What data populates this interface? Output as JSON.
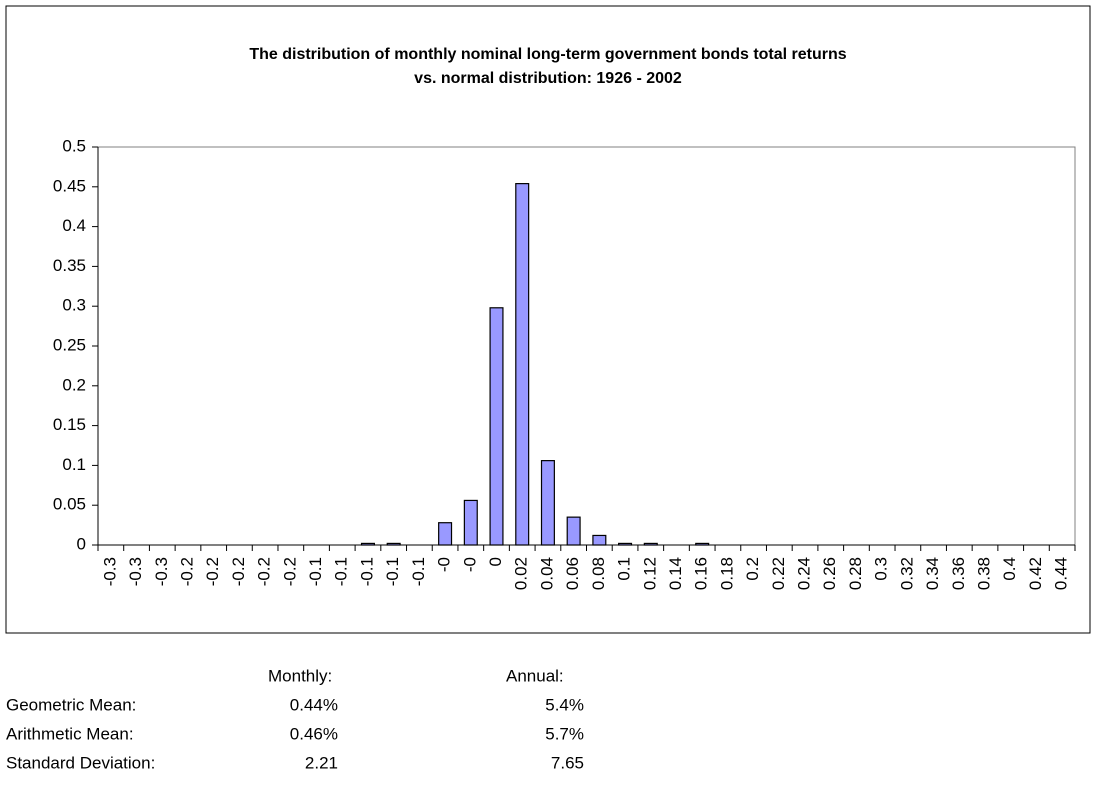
{
  "chart_data": {
    "type": "bar",
    "title": [
      "The distribution of monthly nominal long-term government bonds total returns",
      "vs. normal distribution: 1926 - 2002"
    ],
    "categories": [
      "-0.3",
      "-0.3",
      "-0.3",
      "-0.2",
      "-0.2",
      "-0.2",
      "-0.2",
      "-0.2",
      "-0.1",
      "-0.1",
      "-0.1",
      "-0.1",
      "-0.1",
      "-0",
      "-0",
      "0",
      "0.02",
      "0.04",
      "0.06",
      "0.08",
      "0.1",
      "0.12",
      "0.14",
      "0.16",
      "0.18",
      "0.2",
      "0.22",
      "0.24",
      "0.26",
      "0.28",
      "0.3",
      "0.32",
      "0.34",
      "0.36",
      "0.38",
      "0.4",
      "0.42",
      "0.44"
    ],
    "values": [
      0,
      0,
      0,
      0,
      0,
      0,
      0,
      0,
      0,
      0,
      0.002,
      0.002,
      0,
      0.028,
      0.056,
      0.298,
      0.454,
      0.106,
      0.035,
      0.012,
      0.002,
      0.002,
      0,
      0.002,
      0,
      0,
      0,
      0,
      0,
      0,
      0,
      0,
      0,
      0,
      0,
      0,
      0,
      0
    ],
    "color": "#9999ff",
    "ylim": [
      0,
      0.5
    ],
    "yticks": [
      0,
      0.05,
      0.1,
      0.15,
      0.2,
      0.25,
      0.3,
      0.35,
      0.4,
      0.45,
      0.5
    ],
    "grid": false
  },
  "stats": {
    "headers": [
      "Monthly:",
      "Annual:"
    ],
    "rows": [
      [
        "Geometric Mean:",
        "0.44%",
        "5.4%"
      ],
      [
        "Arithmetic Mean:",
        "0.46%",
        "5.7%"
      ],
      [
        "Standard Deviation:",
        "2.21",
        "7.65"
      ]
    ]
  }
}
